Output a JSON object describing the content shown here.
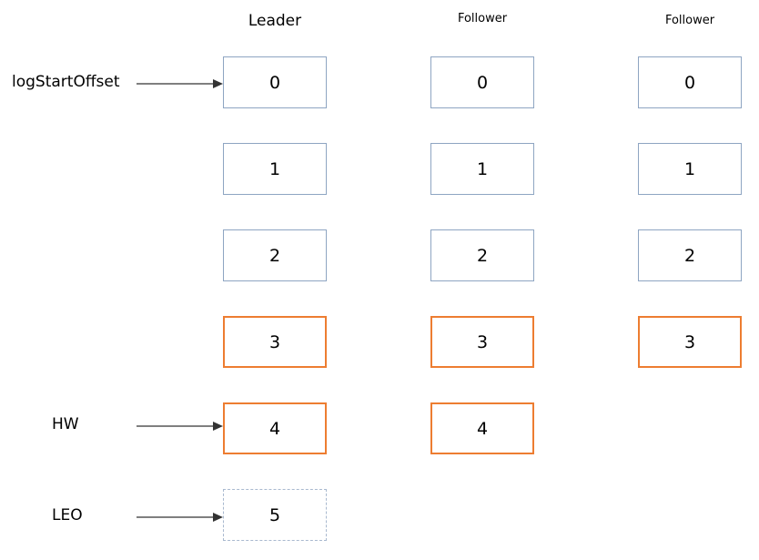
{
  "colors": {
    "default_border": "#8ea5c2",
    "committed_border": "#ed7d31",
    "pending_border": "#a9b9cf",
    "arrow": "#333333"
  },
  "replicas": [
    {
      "title": "Leader",
      "offsets": [
        "0",
        "1",
        "2",
        "3",
        "4",
        "5"
      ]
    },
    {
      "title": "Follower",
      "offsets": [
        "0",
        "1",
        "2",
        "3",
        "4"
      ]
    },
    {
      "title": "Follower",
      "offsets": [
        "0",
        "1",
        "2",
        "3"
      ]
    }
  ],
  "pointers": [
    {
      "label": "logStartOffset",
      "target": "0"
    },
    {
      "label": "HW",
      "target": "4"
    },
    {
      "label": "LEO",
      "target": "5"
    }
  ]
}
